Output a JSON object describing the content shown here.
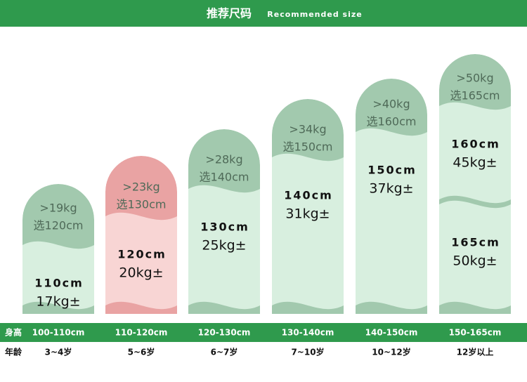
{
  "header": {
    "title": "推荐尺码",
    "subtitle": "Recommended size"
  },
  "row_labels": {
    "height": "身高",
    "age": "年龄"
  },
  "columns": [
    {
      "weight": ">19kg",
      "pick": "选120cm",
      "sizes": [
        {
          "height": "110cm",
          "weight": "17kg±"
        }
      ],
      "height_range": "100-110cm",
      "age": "3~4岁"
    },
    {
      "weight": ">23kg",
      "pick": "选130cm",
      "sizes": [
        {
          "height": "120cm",
          "weight": "20kg±"
        }
      ],
      "height_range": "110-120cm",
      "age": "5~6岁"
    },
    {
      "weight": ">28kg",
      "pick": "选140cm",
      "sizes": [
        {
          "height": "130cm",
          "weight": "25kg±"
        }
      ],
      "height_range": "120-130cm",
      "age": "6~7岁"
    },
    {
      "weight": ">34kg",
      "pick": "选150cm",
      "sizes": [
        {
          "height": "140cm",
          "weight": "31kg±"
        }
      ],
      "height_range": "130-140cm",
      "age": "7~10岁"
    },
    {
      "weight": ">40kg",
      "pick": "选160cm",
      "sizes": [
        {
          "height": "150cm",
          "weight": "37kg±"
        }
      ],
      "height_range": "140-150cm",
      "age": "10~12岁"
    },
    {
      "weight": ">50kg",
      "pick": "选165cm",
      "sizes": [
        {
          "height": "160cm",
          "weight": "45kg±"
        },
        {
          "height": "165cm",
          "weight": "50kg±"
        }
      ],
      "height_range": "150-165cm",
      "age": "12岁以上"
    }
  ]
}
